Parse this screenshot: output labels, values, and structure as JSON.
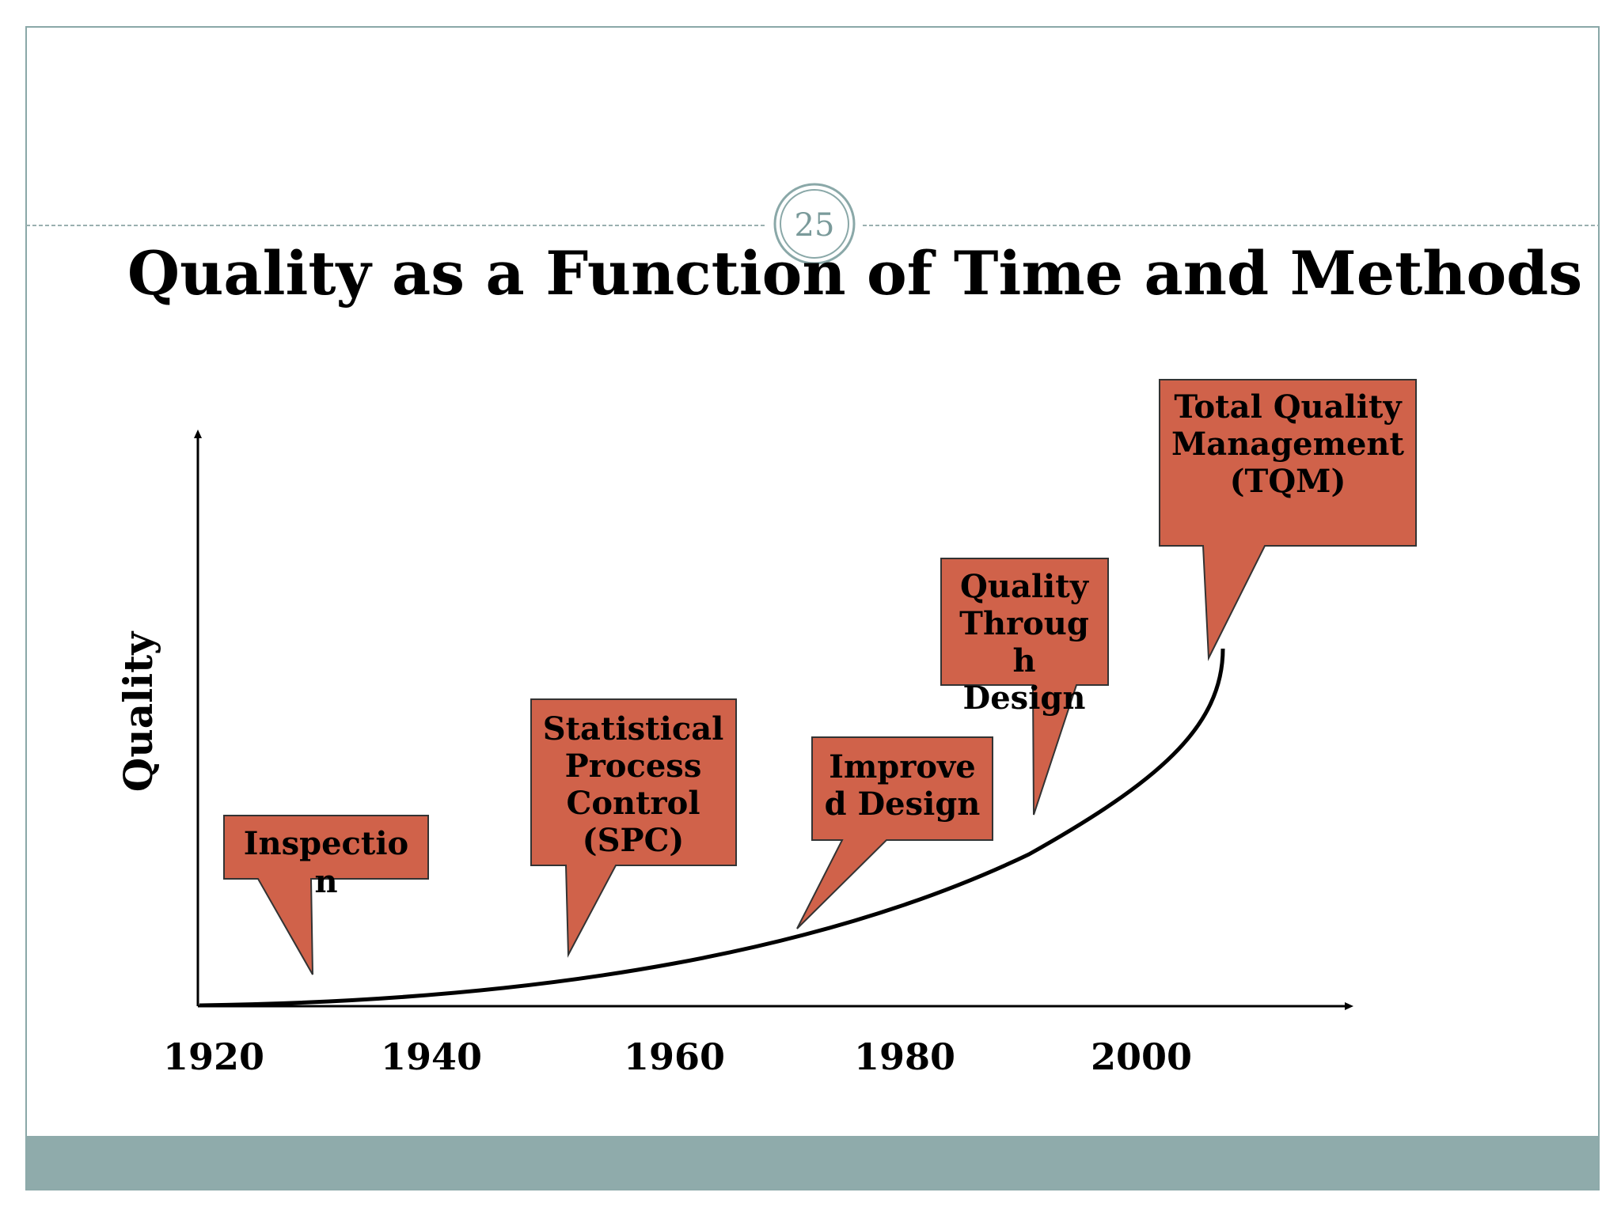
{
  "slide": {
    "page_number": "25",
    "title": "Quality as a Function of Time and Methods"
  },
  "colors": {
    "callout_fill": "#D0624A",
    "callout_stroke": "#333333",
    "frame": "#8AA8A8",
    "footer_bar": "#8FABAB",
    "divider": "#9AB0B0",
    "axis": "#000000"
  },
  "diagram": {
    "y_axis_label": "Quality",
    "x_ticks": [
      "1920",
      "1940",
      "1960",
      "1980",
      "2000"
    ],
    "callouts": [
      {
        "lines": [
          "Inspectio",
          "n"
        ]
      },
      {
        "lines": [
          "Statistical",
          "Process",
          "Control",
          "(SPC)"
        ]
      },
      {
        "lines": [
          "Improve",
          "d Design"
        ]
      },
      {
        "lines": [
          "Quality",
          "Throug",
          "h",
          "Design"
        ]
      },
      {
        "lines": [
          "Total Quality",
          "Management",
          "(TQM)"
        ]
      }
    ]
  }
}
